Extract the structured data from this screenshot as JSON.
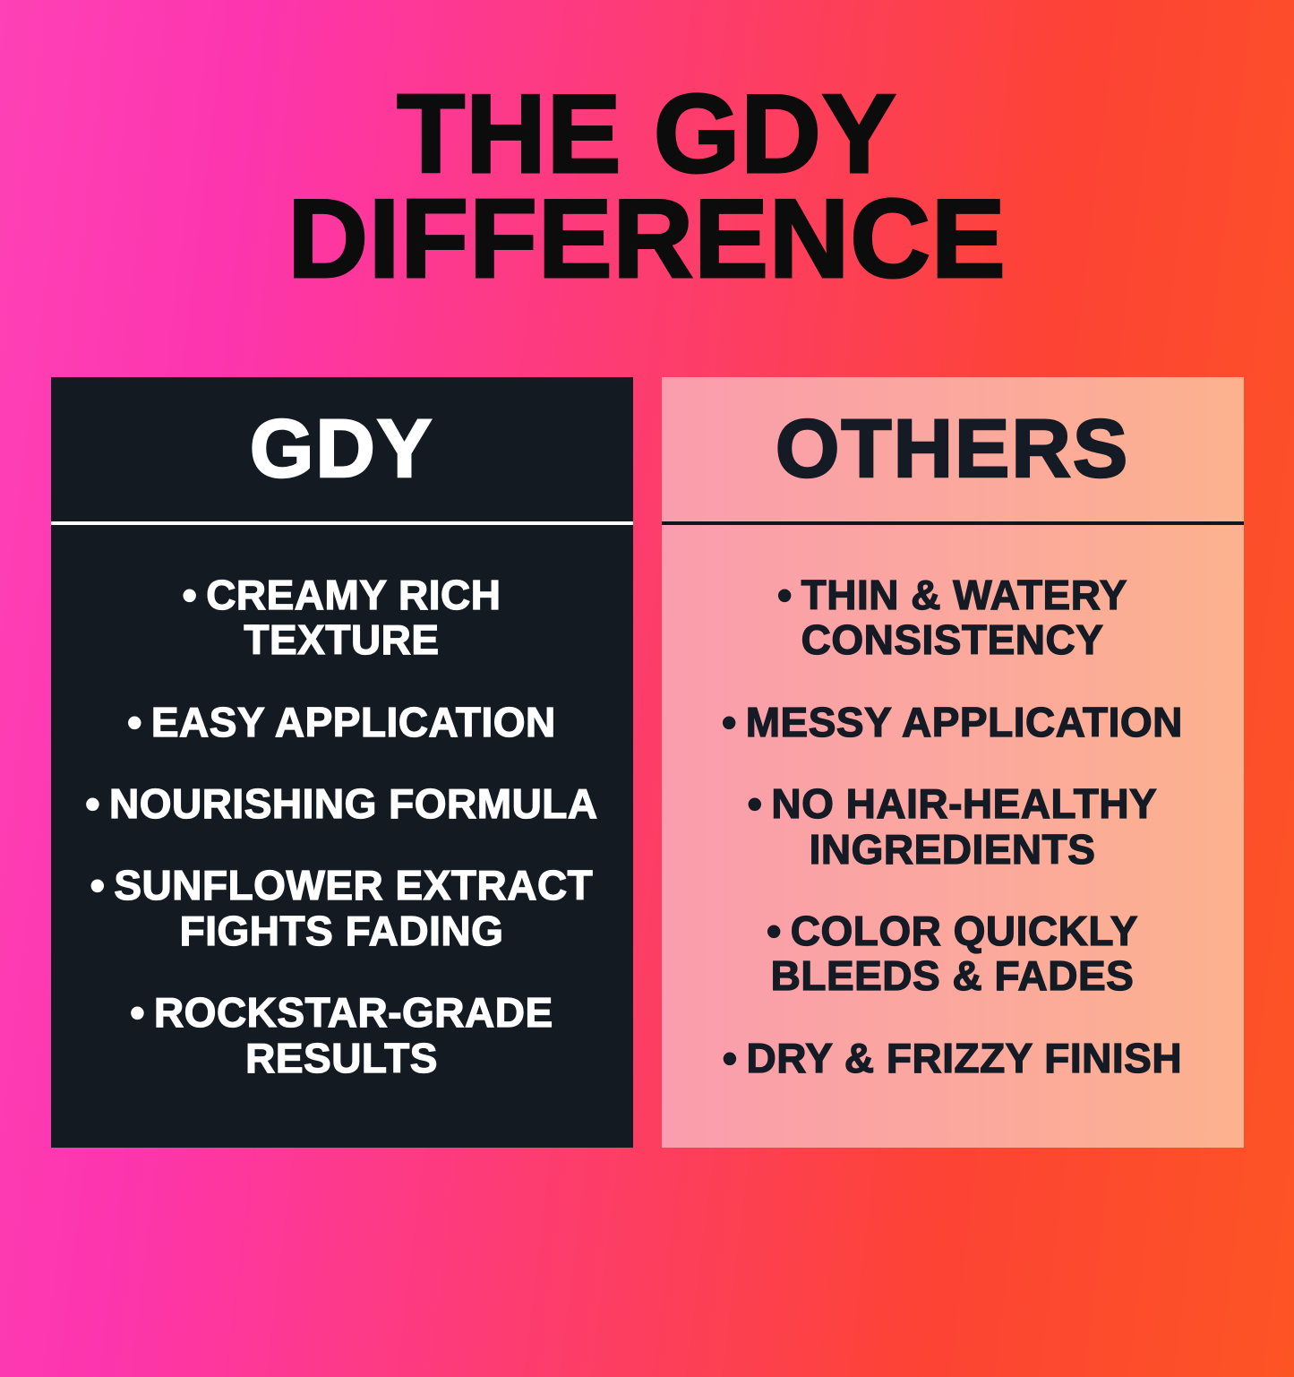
{
  "title": {
    "lines": [
      "THE GDY",
      "DIFFERENCE"
    ]
  },
  "comparison": {
    "bullet": "•",
    "left": {
      "header": "GDY",
      "items": [
        "CREAMY RICH\nTEXTURE",
        "EASY APPLICATION",
        "NOURISHING FORMULA",
        "SUNFLOWER EXTRACT\nFIGHTS FADING",
        "ROCKSTAR-GRADE\nRESULTS"
      ]
    },
    "right": {
      "header": "OTHERS",
      "items": [
        "THIN & WATERY\nCONSISTENCY",
        "MESSY APPLICATION",
        "NO HAIR-HEALTHY\nINGREDIENTS",
        "COLOR QUICKLY\nBLEEDS & FADES",
        "DRY & FRIZZY FINISH"
      ]
    }
  },
  "colors": {
    "background_gradient": [
      "#fe41b6",
      "#fd4335",
      "#fd5424"
    ],
    "title_text": "#0c0c0c",
    "left_card_bg": "#131a22",
    "left_card_text": "#ffffff",
    "left_divider": "#ffffff",
    "right_card_bg_gradient": [
      "#fa9dae",
      "#fcb28e"
    ],
    "right_card_text": "#151b25",
    "right_divider": "#10161e"
  }
}
